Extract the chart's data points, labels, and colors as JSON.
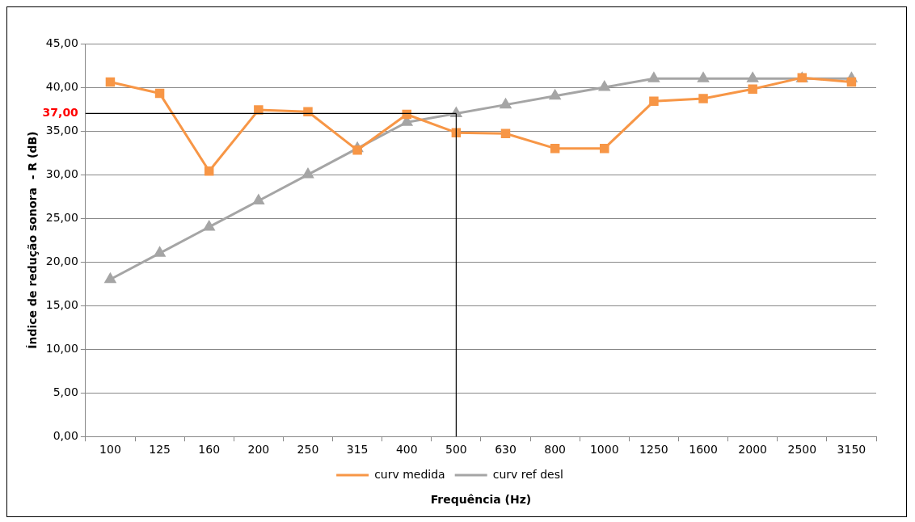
{
  "chart_data": {
    "type": "line",
    "xlabel": "Frequência (Hz)",
    "ylabel": "Índice de redução sonora  - R (dB)",
    "categories": [
      "100",
      "125",
      "160",
      "200",
      "250",
      "315",
      "400",
      "500",
      "630",
      "800",
      "1000",
      "1250",
      "1600",
      "2000",
      "2500",
      "3150"
    ],
    "series": [
      {
        "name": "curv medida",
        "color": "#f79646",
        "marker": "square",
        "values": [
          40.6,
          39.3,
          30.4,
          37.4,
          37.2,
          32.8,
          36.9,
          34.8,
          34.7,
          33.0,
          33.0,
          38.4,
          38.7,
          39.8,
          41.1,
          40.6
        ]
      },
      {
        "name": "curv ref desl",
        "color": "#a5a5a5",
        "marker": "triangle",
        "values": [
          18,
          21,
          24,
          27,
          30,
          33,
          36,
          37,
          38,
          39,
          40,
          41,
          41,
          41,
          41,
          41
        ]
      }
    ],
    "ylim": [
      0,
      45
    ],
    "yticks": [
      {
        "value": 0,
        "label": "0,00"
      },
      {
        "value": 5,
        "label": "5,00"
      },
      {
        "value": 10,
        "label": "10,00"
      },
      {
        "value": 15,
        "label": "15,00"
      },
      {
        "value": 20,
        "label": "20,00"
      },
      {
        "value": 25,
        "label": "25,00"
      },
      {
        "value": 30,
        "label": "30,00"
      },
      {
        "value": 35,
        "label": "35,00"
      },
      {
        "value": 40,
        "label": "40,00"
      },
      {
        "value": 45,
        "label": "45,00"
      }
    ],
    "ref_lines": [
      {
        "axis": "y",
        "value": 37,
        "label": "37,00",
        "color": "#000000"
      },
      {
        "axis": "x",
        "value": "500",
        "color": "#000000"
      }
    ],
    "grid": "y",
    "legend": "bottom",
    "line_style": "solid"
  }
}
